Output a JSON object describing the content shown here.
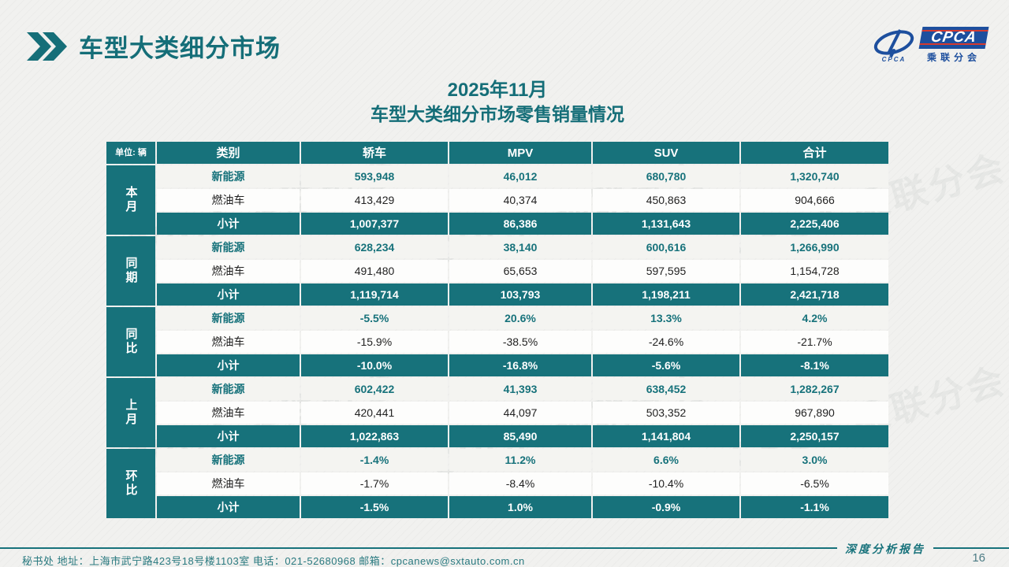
{
  "slide": {
    "title": "车型大类细分市场",
    "subtitle_line1": "2025年11月",
    "subtitle_line2": "车型大类细分市场零售销量情况"
  },
  "logo": {
    "acronym": "CPCA",
    "mark_sub": "CPCA",
    "subtitle": "乘联分会"
  },
  "table": {
    "unit_label": "单位: 辆",
    "columns": [
      "类别",
      "轿车",
      "MPV",
      "SUV",
      "合计"
    ],
    "groups": [
      {
        "label": "本月",
        "rows": [
          {
            "type": "nev",
            "category": "新能源",
            "values": [
              "593,948",
              "46,012",
              "680,780",
              "1,320,740"
            ]
          },
          {
            "type": "ice",
            "category": "燃油车",
            "values": [
              "413,429",
              "40,374",
              "450,863",
              "904,666"
            ]
          },
          {
            "type": "subtotal",
            "category": "小计",
            "values": [
              "1,007,377",
              "86,386",
              "1,131,643",
              "2,225,406"
            ]
          }
        ]
      },
      {
        "label": "同期",
        "rows": [
          {
            "type": "nev",
            "category": "新能源",
            "values": [
              "628,234",
              "38,140",
              "600,616",
              "1,266,990"
            ]
          },
          {
            "type": "ice",
            "category": "燃油车",
            "values": [
              "491,480",
              "65,653",
              "597,595",
              "1,154,728"
            ]
          },
          {
            "type": "subtotal",
            "category": "小计",
            "values": [
              "1,119,714",
              "103,793",
              "1,198,211",
              "2,421,718"
            ]
          }
        ]
      },
      {
        "label": "同比",
        "rows": [
          {
            "type": "nev",
            "category": "新能源",
            "values": [
              "-5.5%",
              "20.6%",
              "13.3%",
              "4.2%"
            ]
          },
          {
            "type": "ice",
            "category": "燃油车",
            "values": [
              "-15.9%",
              "-38.5%",
              "-24.6%",
              "-21.7%"
            ]
          },
          {
            "type": "subtotal",
            "category": "小计",
            "values": [
              "-10.0%",
              "-16.8%",
              "-5.6%",
              "-8.1%"
            ]
          }
        ]
      },
      {
        "label": "上月",
        "rows": [
          {
            "type": "nev",
            "category": "新能源",
            "values": [
              "602,422",
              "41,393",
              "638,452",
              "1,282,267"
            ]
          },
          {
            "type": "ice",
            "category": "燃油车",
            "values": [
              "420,441",
              "44,097",
              "503,352",
              "967,890"
            ]
          },
          {
            "type": "subtotal",
            "category": "小计",
            "values": [
              "1,022,863",
              "85,490",
              "1,141,804",
              "2,250,157"
            ]
          }
        ]
      },
      {
        "label": "环比",
        "rows": [
          {
            "type": "nev",
            "category": "新能源",
            "values": [
              "-1.4%",
              "11.2%",
              "6.6%",
              "3.0%"
            ]
          },
          {
            "type": "ice",
            "category": "燃油车",
            "values": [
              "-1.7%",
              "-8.4%",
              "-10.4%",
              "-6.5%"
            ]
          },
          {
            "type": "subtotal",
            "category": "小计",
            "values": [
              "-1.5%",
              "1.0%",
              "-0.9%",
              "-1.1%"
            ]
          }
        ]
      }
    ]
  },
  "footer": {
    "left_text": "秘书处   地址：上海市武宁路423号18号楼1103室  电话：021-52680968   邮箱：cpcanews@sxtauto.com.cn",
    "report_label": "深度分析报告",
    "page_number": "16"
  },
  "watermark": {
    "text": "CPCA 乘联分会"
  },
  "colors": {
    "teal": "#17727B",
    "logo_blue": "#1D4F9E",
    "logo_red": "#D43A30"
  }
}
